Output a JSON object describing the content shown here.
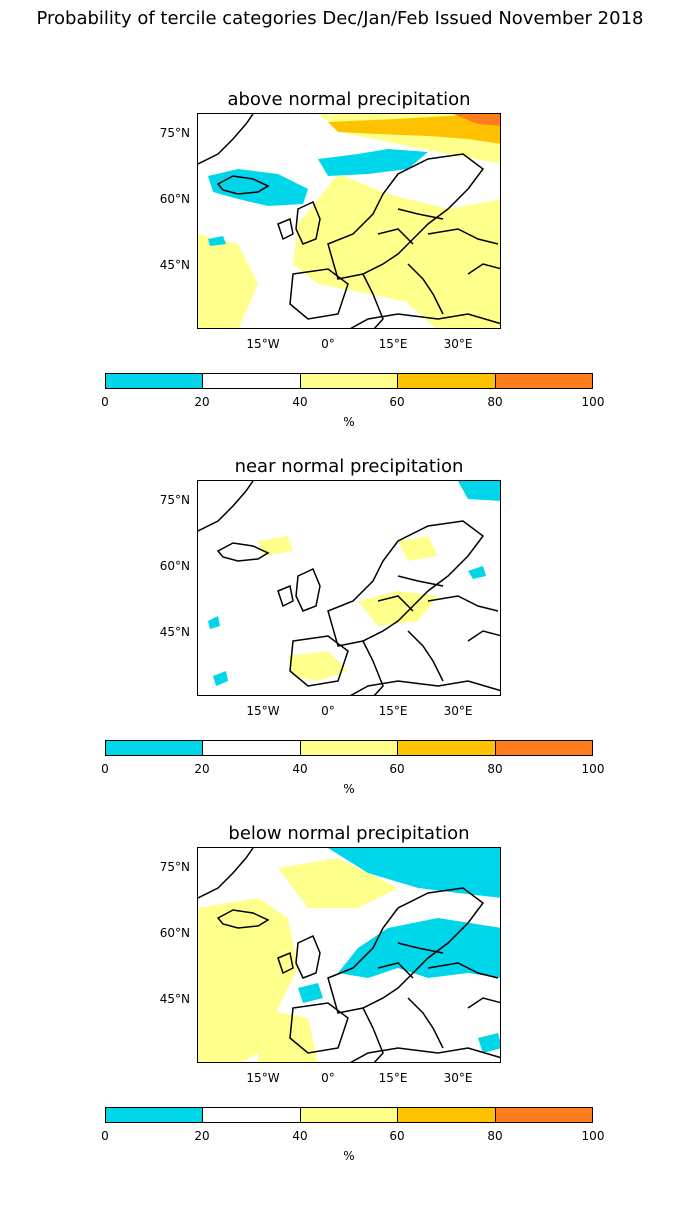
{
  "title": "Probability of tercile categories Dec/Jan/Feb Issued November 2018",
  "lat_labels": [
    "75°N",
    "60°N",
    "45°N"
  ],
  "lon_labels": [
    "15°W",
    "0°",
    "15°E",
    "30°E"
  ],
  "colorbar": {
    "ticks": [
      "0",
      "20",
      "40",
      "60",
      "80",
      "100"
    ],
    "unit": "%",
    "colors": [
      "#00d6ea",
      "#ffffff",
      "#ffff8c",
      "#ffc200",
      "#ff7d1e"
    ]
  },
  "panels": [
    {
      "title": "above normal precipitation"
    },
    {
      "title": "near normal precipitation"
    },
    {
      "title": "below normal precipitation"
    }
  ]
}
